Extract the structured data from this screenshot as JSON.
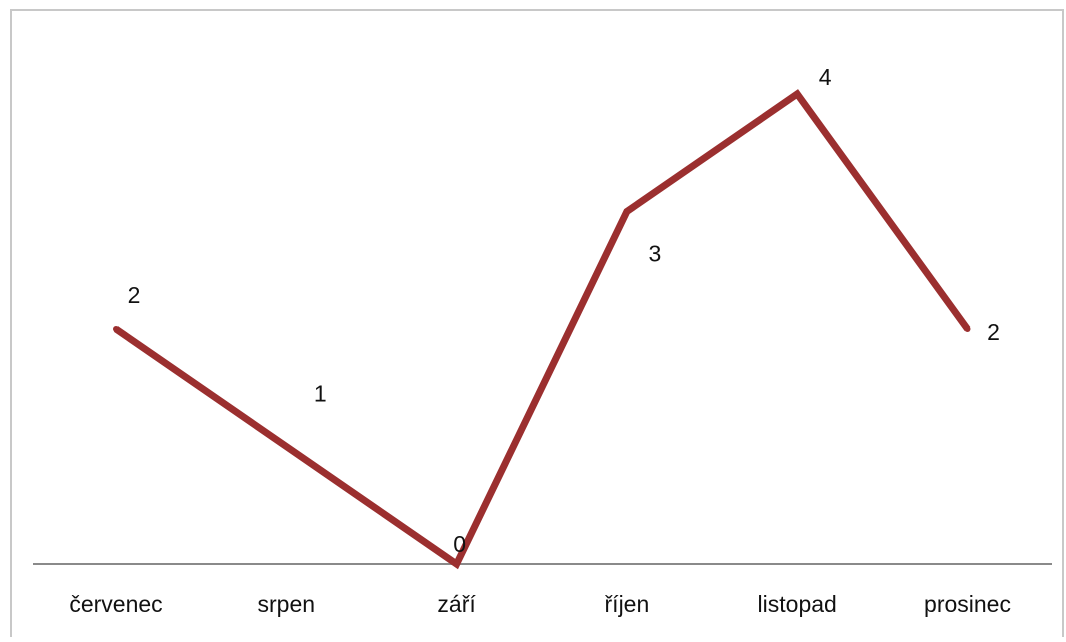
{
  "chart_data": {
    "type": "line",
    "title": "",
    "xlabel": "",
    "ylabel": "",
    "categories": [
      "červenec",
      "srpen",
      "září",
      "říjen",
      "listopad",
      "prosinec"
    ],
    "series": [
      {
        "values": [
          2,
          1,
          0,
          3,
          4,
          2
        ],
        "color": "#9b2f2f"
      }
    ],
    "ylim": [
      0,
      4
    ],
    "grid": false,
    "legend": "none",
    "axis_color": "#8a8a8a",
    "frame_color": "#c8c8c8"
  }
}
